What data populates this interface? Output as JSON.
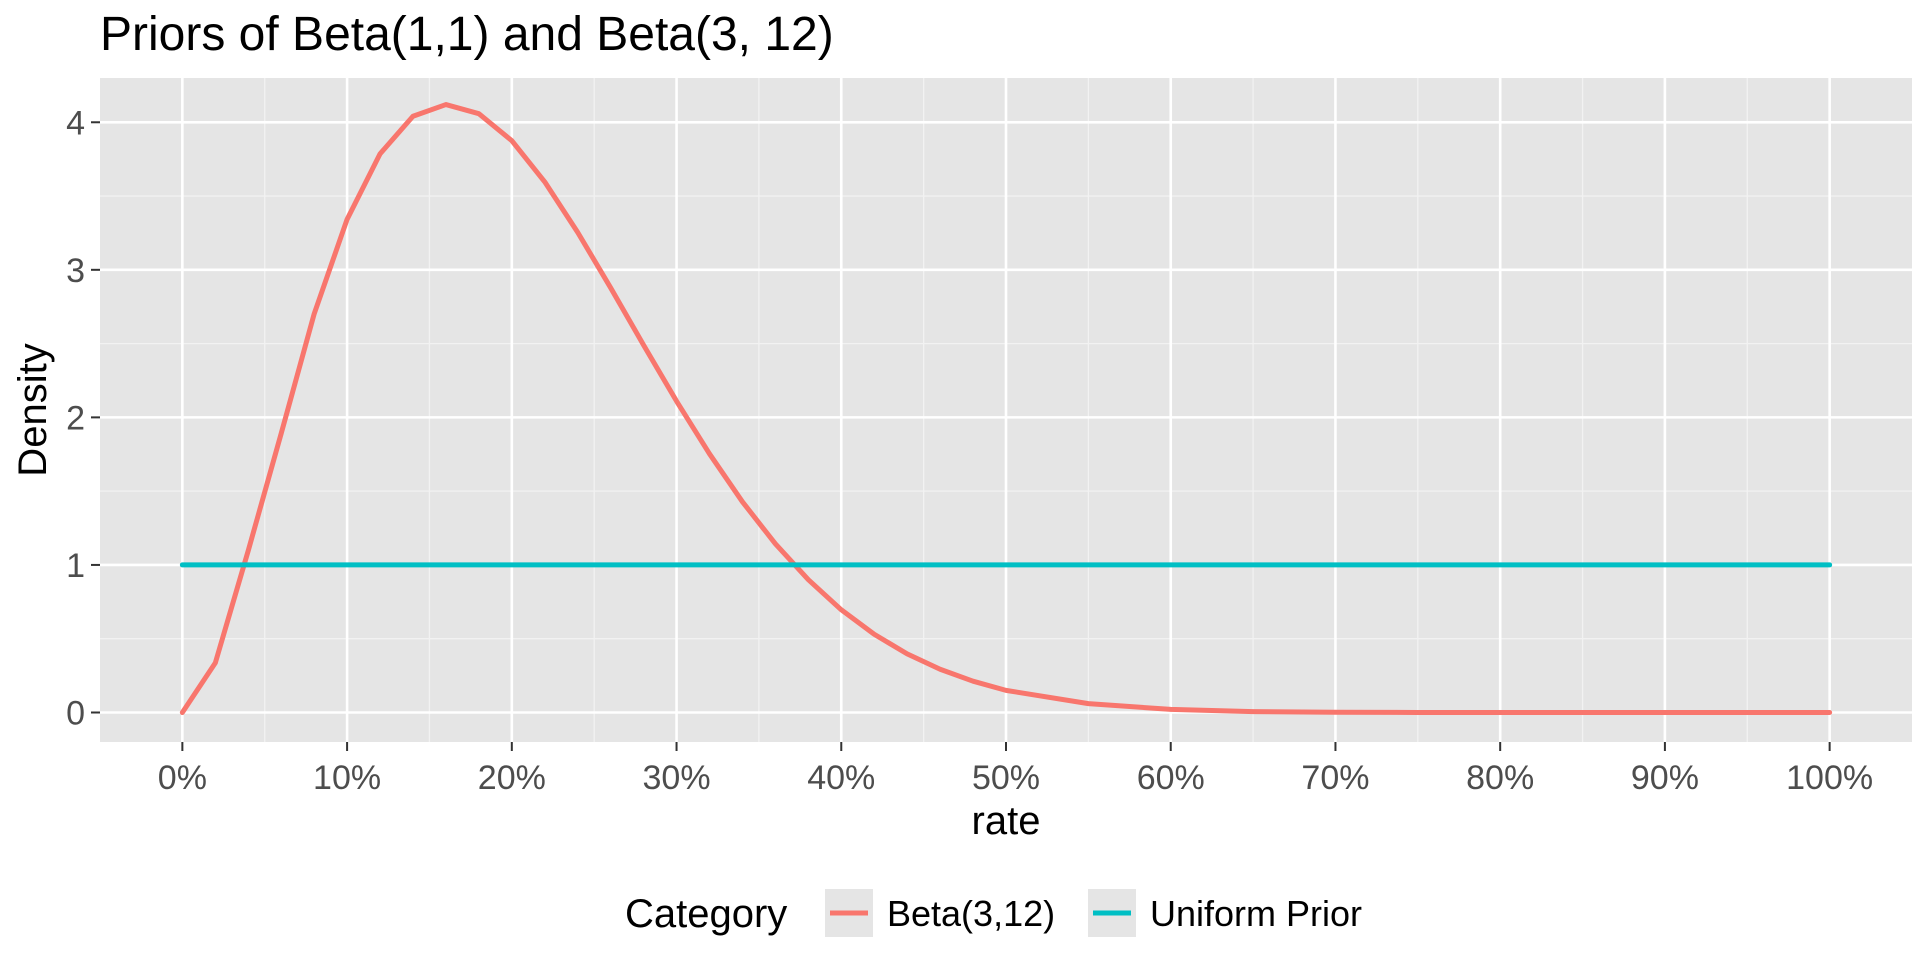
{
  "chart_data": {
    "type": "line",
    "title": "Priors of Beta(1,1) and Beta(3, 12)",
    "xlabel": "rate",
    "ylabel": "Density",
    "xlim": [
      -0.05,
      1.05
    ],
    "ylim": [
      -0.2,
      4.3
    ],
    "x_ticks": [
      0,
      0.1,
      0.2,
      0.3,
      0.4,
      0.5,
      0.6,
      0.7,
      0.8,
      0.9,
      1.0
    ],
    "x_tick_labels": [
      "0%",
      "10%",
      "20%",
      "30%",
      "40%",
      "50%",
      "60%",
      "70%",
      "80%",
      "90%",
      "100%"
    ],
    "y_ticks": [
      0,
      1,
      2,
      3,
      4
    ],
    "y_tick_labels": [
      "0",
      "1",
      "2",
      "3",
      "4"
    ],
    "grid": true,
    "legend": {
      "title": "Category",
      "placement": "bottom",
      "entries": [
        "Beta(3,12)",
        "Uniform Prior"
      ]
    },
    "series": [
      {
        "name": "Beta(3,12)",
        "color": "#F8766D",
        "x": [
          0,
          0.02,
          0.04,
          0.06,
          0.08,
          0.1,
          0.12,
          0.14,
          0.16,
          0.18,
          0.2,
          0.22,
          0.24,
          0.26,
          0.28,
          0.3,
          0.32,
          0.34,
          0.36,
          0.38,
          0.4,
          0.42,
          0.44,
          0.46,
          0.48,
          0.5,
          0.55,
          0.6,
          0.65,
          0.7,
          0.75,
          0.8,
          0.85,
          0.9,
          0.95,
          1.0
        ],
        "y": [
          0,
          0.336,
          1.097,
          1.891,
          2.701,
          3.342,
          3.786,
          4.041,
          4.12,
          4.058,
          3.875,
          3.596,
          3.254,
          2.878,
          2.49,
          2.11,
          1.753,
          1.428,
          1.143,
          0.9,
          0.696,
          0.53,
          0.397,
          0.293,
          0.212,
          0.15,
          0.06,
          0.021,
          0.006,
          0.002,
          0.0,
          0.0,
          0.0,
          0.0,
          0.0,
          0.0
        ]
      },
      {
        "name": "Uniform Prior",
        "color": "#00BFC4",
        "x": [
          0,
          1.0
        ],
        "y": [
          1,
          1
        ]
      }
    ]
  }
}
